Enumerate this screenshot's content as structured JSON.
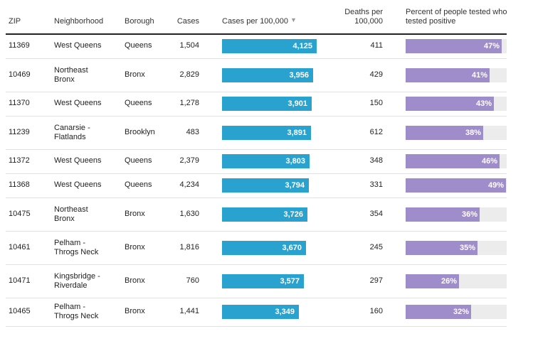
{
  "header": {
    "zip": "ZIP",
    "neighborhood": "Neighborhood",
    "borough": "Borough",
    "cases": "Cases",
    "cases_per_100k": "Cases per 100,000",
    "sort_icon": "▼",
    "deaths_line1": "Deaths per",
    "deaths_line2": "100,000",
    "pct_line1": "Percent of people tested who",
    "pct_line2": "tested positive"
  },
  "accent_colors": {
    "cases_bar": "#2aa2d0",
    "positive_bar": "#9e8ccb",
    "track": "#ececec"
  },
  "scale": {
    "cases_per_100k_max": 4125,
    "percent_max": 49
  },
  "rows": [
    {
      "zip": "11369",
      "neighborhood": [
        "West Queens"
      ],
      "borough": "Queens",
      "cases": "1,504",
      "rate": 4125,
      "rate_label": "4,125",
      "deaths": "411",
      "pct": 47,
      "pct_label": "47%"
    },
    {
      "zip": "10469",
      "neighborhood": [
        "Northeast",
        "Bronx"
      ],
      "borough": "Bronx",
      "cases": "2,829",
      "rate": 3956,
      "rate_label": "3,956",
      "deaths": "429",
      "pct": 41,
      "pct_label": "41%"
    },
    {
      "zip": "11370",
      "neighborhood": [
        "West Queens"
      ],
      "borough": "Queens",
      "cases": "1,278",
      "rate": 3901,
      "rate_label": "3,901",
      "deaths": "150",
      "pct": 43,
      "pct_label": "43%"
    },
    {
      "zip": "11239",
      "neighborhood": [
        "Canarsie -",
        "Flatlands"
      ],
      "borough": "Brooklyn",
      "cases": "483",
      "rate": 3891,
      "rate_label": "3,891",
      "deaths": "612",
      "pct": 38,
      "pct_label": "38%"
    },
    {
      "zip": "11372",
      "neighborhood": [
        "West Queens"
      ],
      "borough": "Queens",
      "cases": "2,379",
      "rate": 3803,
      "rate_label": "3,803",
      "deaths": "348",
      "pct": 46,
      "pct_label": "46%"
    },
    {
      "zip": "11368",
      "neighborhood": [
        "West Queens"
      ],
      "borough": "Queens",
      "cases": "4,234",
      "rate": 3794,
      "rate_label": "3,794",
      "deaths": "331",
      "pct": 49,
      "pct_label": "49%"
    },
    {
      "zip": "10475",
      "neighborhood": [
        "Northeast",
        "Bronx"
      ],
      "borough": "Bronx",
      "cases": "1,630",
      "rate": 3726,
      "rate_label": "3,726",
      "deaths": "354",
      "pct": 36,
      "pct_label": "36%"
    },
    {
      "zip": "10461",
      "neighborhood": [
        "Pelham -",
        "Throgs Neck"
      ],
      "borough": "Bronx",
      "cases": "1,816",
      "rate": 3670,
      "rate_label": "3,670",
      "deaths": "245",
      "pct": 35,
      "pct_label": "35%"
    },
    {
      "zip": "10471",
      "neighborhood": [
        "Kingsbridge -",
        "Riverdale"
      ],
      "borough": "Bronx",
      "cases": "760",
      "rate": 3577,
      "rate_label": "3,577",
      "deaths": "297",
      "pct": 26,
      "pct_label": "26%"
    },
    {
      "zip": "10465",
      "neighborhood": [
        "Pelham -",
        "Throgs Neck"
      ],
      "borough": "Bronx",
      "cases": "1,441",
      "rate": 3349,
      "rate_label": "3,349",
      "deaths": "160",
      "pct": 32,
      "pct_label": "32%"
    }
  ]
}
